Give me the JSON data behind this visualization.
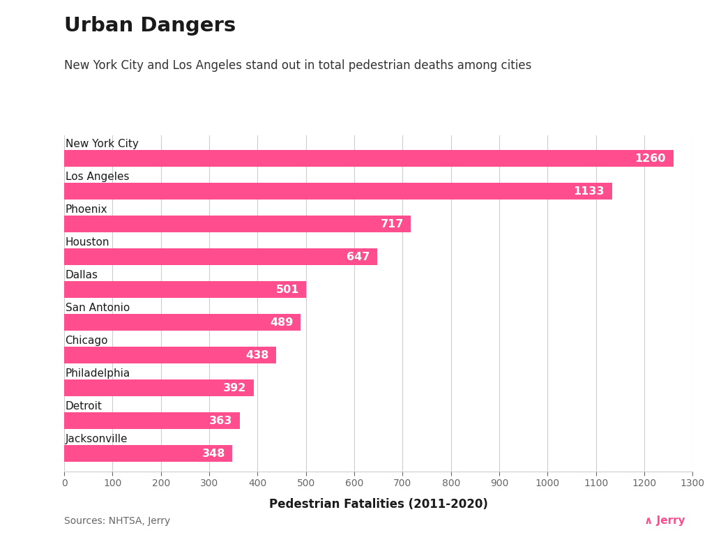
{
  "title": "Urban Dangers",
  "subtitle": "New York City and Los Angeles stand out in total pedestrian deaths among cities",
  "xlabel": "Pedestrian Fatalities (2011-2020)",
  "source": "Sources: NHTSA, Jerry",
  "cities": [
    "New York City",
    "Los Angeles",
    "Phoenix",
    "Houston",
    "Dallas",
    "San Antonio",
    "Chicago",
    "Philadelphia",
    "Detroit",
    "Jacksonville"
  ],
  "values": [
    1260,
    1133,
    717,
    647,
    501,
    489,
    438,
    392,
    363,
    348
  ],
  "bar_color": "#FF4D8D",
  "label_color": "#FFFFFF",
  "title_color": "#1a1a1a",
  "subtitle_color": "#333333",
  "source_color": "#666666",
  "axis_color": "#cccccc",
  "tick_color": "#666666",
  "background_color": "#FFFFFF",
  "xlim": [
    0,
    1300
  ],
  "xticks": [
    0,
    100,
    200,
    300,
    400,
    500,
    600,
    700,
    800,
    900,
    1000,
    1100,
    1200,
    1300
  ],
  "jerry_color": "#FF4D8D",
  "jerry_text": "∧ Jerry",
  "bar_height": 0.5
}
